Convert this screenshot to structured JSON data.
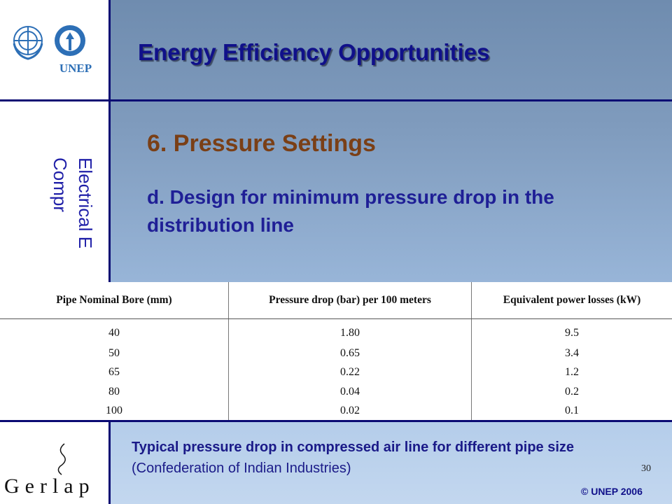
{
  "header": {
    "title": "Energy Efficiency Opportunities",
    "logo_text": "UNEP"
  },
  "sidebar": {
    "vertical_text_line1": "Electrical E",
    "vertical_text_line2": "Compr"
  },
  "main": {
    "heading": "6. Pressure Settings",
    "subheading": "d. Design for minimum pressure drop in the distribution line"
  },
  "table": {
    "headers": [
      "Pipe Nominal Bore (mm)",
      "Pressure drop (bar) per 100 meters",
      "Equivalent power losses (kW)"
    ],
    "rows": [
      [
        "40",
        "1.80",
        "9.5"
      ],
      [
        "50",
        "0.65",
        "3.4"
      ],
      [
        "65",
        "0.22",
        "1.2"
      ],
      [
        "80",
        "0.04",
        "0.2"
      ],
      [
        "100",
        "0.02",
        "0.1"
      ]
    ]
  },
  "caption": {
    "bold": "Typical pressure drop in compressed air line for different pipe size",
    "normal": " (Confederation of Indian Industries)"
  },
  "footer": {
    "page_number": "30",
    "copyright": "© UNEP 2006",
    "gerlap": "Gerlap"
  }
}
